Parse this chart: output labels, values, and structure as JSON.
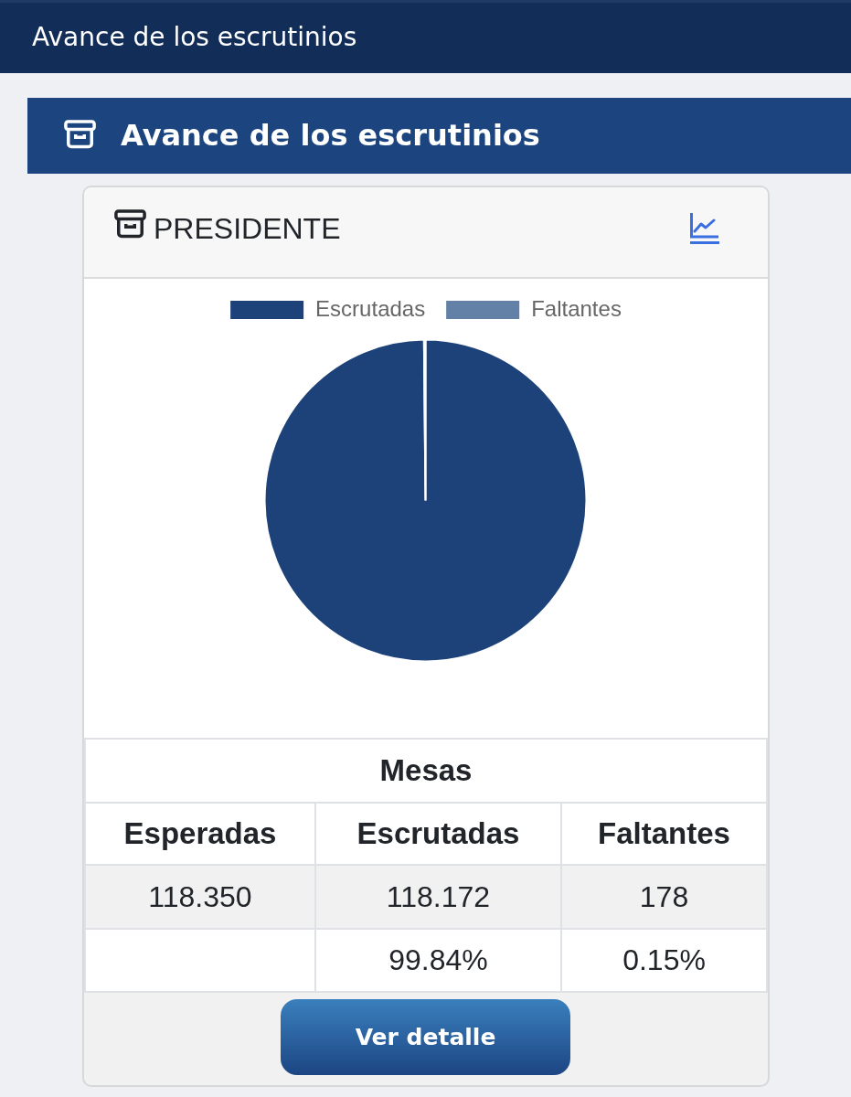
{
  "chart_data": {
    "type": "pie",
    "title": "Avance de los escrutinios",
    "subtitle": "PRESIDENTE",
    "categories": [
      "Escrutadas",
      "Faltantes"
    ],
    "values": [
      99.85,
      0.15
    ],
    "colors": [
      "#1d4279",
      "#6380a6"
    ],
    "legend": "top",
    "annotations": [
      "Avance de los escrutinios",
      "Mesas",
      "Esperadas",
      "118.350",
      "118.172",
      "178",
      "99.84%",
      "0.15%",
      "Ver detalle"
    ]
  }
}
